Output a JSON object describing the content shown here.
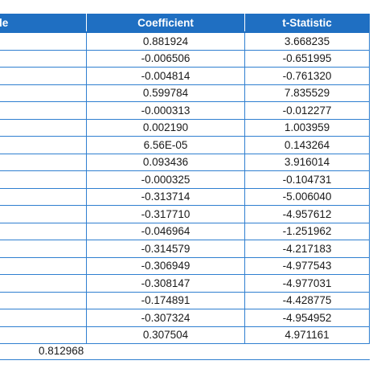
{
  "table": {
    "headers": {
      "variable": "le",
      "coefficient": "Coefficient",
      "t_statistic": "t-Statistic"
    },
    "rows": [
      {
        "coefficient": "0.881924",
        "t_statistic": "3.668235"
      },
      {
        "coefficient": "-0.006506",
        "t_statistic": "-0.651995"
      },
      {
        "coefficient": "-0.004814",
        "t_statistic": "-0.761320"
      },
      {
        "coefficient": "0.599784",
        "t_statistic": "7.835529"
      },
      {
        "coefficient": "-0.000313",
        "t_statistic": "-0.012277"
      },
      {
        "coefficient": "0.002190",
        "t_statistic": "1.003959"
      },
      {
        "coefficient": "6.56E-05",
        "t_statistic": "0.143264"
      },
      {
        "coefficient": "0.093436",
        "t_statistic": "3.916014"
      },
      {
        "coefficient": "-0.000325",
        "t_statistic": "-0.104731"
      },
      {
        "coefficient": "-0.313714",
        "t_statistic": "-5.006040"
      },
      {
        "coefficient": "-0.317710",
        "t_statistic": "-4.957612"
      },
      {
        "coefficient": "-0.046964",
        "t_statistic": "-1.251962"
      },
      {
        "coefficient": "-0.314579",
        "t_statistic": "-4.217183"
      },
      {
        "coefficient": "-0.306949",
        "t_statistic": "-4.977543"
      },
      {
        "coefficient": "-0.308147",
        "t_statistic": "-4.977031"
      },
      {
        "coefficient": "-0.174891",
        "t_statistic": "-4.428775"
      },
      {
        "coefficient": "-0.307324",
        "t_statistic": "-4.954952"
      },
      {
        "coefficient": "0.307504",
        "t_statistic": "4.971161"
      }
    ],
    "summary_value": "0.812968"
  },
  "colors": {
    "header_bg": "#1f6fc2",
    "header_text": "#ffffff",
    "border": "#2f7fd0"
  }
}
